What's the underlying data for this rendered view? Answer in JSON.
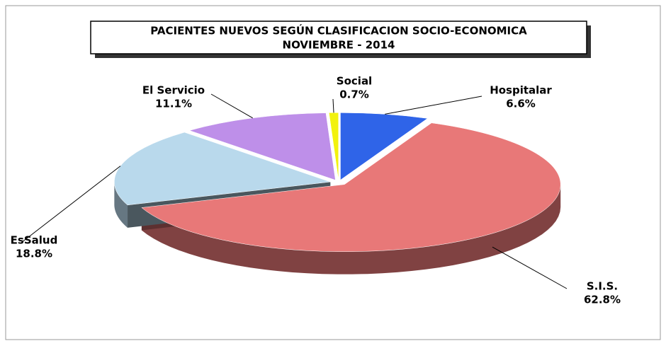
{
  "chart_data": {
    "type": "pie",
    "title": "PACIENTES NUEVOS SEGÚN CLASIFICACION SOCIO-ECONOMICA",
    "subtitle": "NOVIEMBRE  - 2014",
    "categories": [
      "Hospitalar",
      "S.I.S.",
      "EsSalud",
      "El Servicio",
      "Social"
    ],
    "values": [
      6.6,
      62.8,
      18.8,
      11.1,
      0.7
    ],
    "value_labels": [
      "6.6%",
      "62.8%",
      "18.8%",
      "11.1%",
      "0.7%"
    ],
    "colors": [
      "#2f64e8",
      "#e87878",
      "#b9d9ec",
      "#be8fe9",
      "#f2f20c"
    ]
  }
}
